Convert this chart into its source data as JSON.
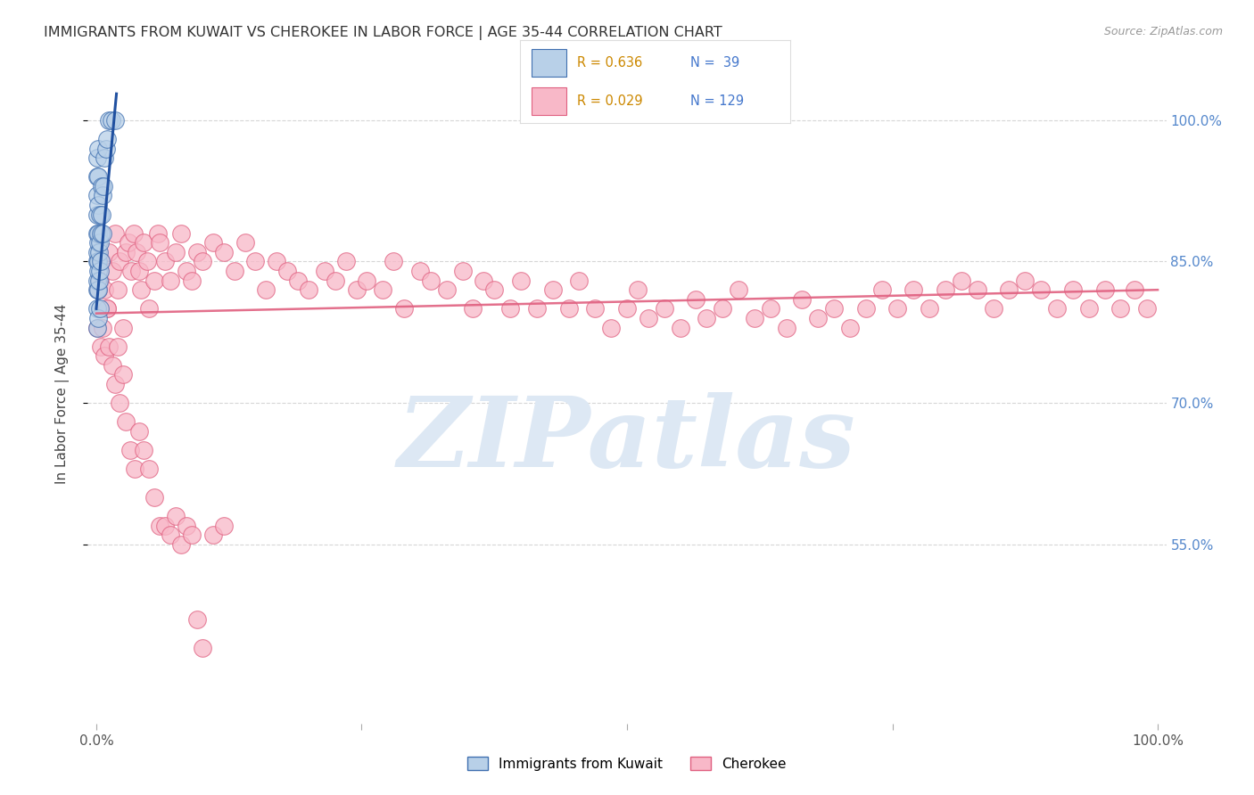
{
  "title": "IMMIGRANTS FROM KUWAIT VS CHEROKEE IN LABOR FORCE | AGE 35-44 CORRELATION CHART",
  "source": "Source: ZipAtlas.com",
  "ylabel": "In Labor Force | Age 35-44",
  "y_min": 0.36,
  "y_max": 1.06,
  "x_min": -0.008,
  "x_max": 1.008,
  "kuwait_R": 0.636,
  "kuwait_N": 39,
  "cherokee_R": 0.029,
  "cherokee_N": 129,
  "legend_label_kuwait": "Immigrants from Kuwait",
  "legend_label_cherokee": "Cherokee",
  "kuwait_fill_color": "#b8d0e8",
  "kuwait_edge_color": "#4070b0",
  "kuwait_line_color": "#2050a0",
  "cherokee_fill_color": "#f8b8c8",
  "cherokee_edge_color": "#e06080",
  "cherokee_line_color": "#e06080",
  "background_color": "#ffffff",
  "grid_color": "#cccccc",
  "title_color": "#333333",
  "source_color": "#999999",
  "watermark_color": "#dde8f4",
  "right_axis_color": "#5588cc",
  "kuwait_x": [
    0.0005,
    0.0008,
    0.001,
    0.001,
    0.001,
    0.001,
    0.001,
    0.001,
    0.001,
    0.001,
    0.001,
    0.0015,
    0.0015,
    0.002,
    0.002,
    0.002,
    0.002,
    0.002,
    0.002,
    0.002,
    0.0025,
    0.0025,
    0.003,
    0.003,
    0.003,
    0.003,
    0.004,
    0.004,
    0.005,
    0.005,
    0.006,
    0.006,
    0.007,
    0.008,
    0.009,
    0.01,
    0.012,
    0.014,
    0.018
  ],
  "kuwait_y": [
    0.82,
    0.85,
    0.78,
    0.8,
    0.83,
    0.86,
    0.88,
    0.9,
    0.92,
    0.94,
    0.96,
    0.84,
    0.87,
    0.79,
    0.82,
    0.85,
    0.88,
    0.91,
    0.94,
    0.97,
    0.83,
    0.86,
    0.8,
    0.84,
    0.87,
    0.9,
    0.85,
    0.88,
    0.9,
    0.93,
    0.88,
    0.92,
    0.93,
    0.96,
    0.97,
    0.98,
    1.0,
    1.0,
    1.0
  ],
  "cherokee_x": [
    0.003,
    0.005,
    0.008,
    0.01,
    0.012,
    0.015,
    0.018,
    0.02,
    0.022,
    0.025,
    0.028,
    0.03,
    0.033,
    0.035,
    0.038,
    0.04,
    0.042,
    0.045,
    0.048,
    0.05,
    0.055,
    0.058,
    0.06,
    0.065,
    0.07,
    0.075,
    0.08,
    0.085,
    0.09,
    0.095,
    0.1,
    0.11,
    0.12,
    0.13,
    0.14,
    0.15,
    0.16,
    0.17,
    0.18,
    0.19,
    0.2,
    0.215,
    0.225,
    0.235,
    0.245,
    0.255,
    0.27,
    0.28,
    0.29,
    0.305,
    0.315,
    0.33,
    0.345,
    0.355,
    0.365,
    0.375,
    0.39,
    0.4,
    0.415,
    0.43,
    0.445,
    0.455,
    0.47,
    0.485,
    0.5,
    0.51,
    0.52,
    0.535,
    0.55,
    0.565,
    0.575,
    0.59,
    0.605,
    0.62,
    0.635,
    0.65,
    0.665,
    0.68,
    0.695,
    0.71,
    0.725,
    0.74,
    0.755,
    0.77,
    0.785,
    0.8,
    0.815,
    0.83,
    0.845,
    0.86,
    0.875,
    0.89,
    0.905,
    0.92,
    0.935,
    0.95,
    0.965,
    0.978,
    0.99,
    0.001,
    0.002,
    0.004,
    0.006,
    0.008,
    0.01,
    0.012,
    0.015,
    0.018,
    0.02,
    0.022,
    0.025,
    0.028,
    0.032,
    0.036,
    0.04,
    0.045,
    0.05,
    0.055,
    0.06,
    0.065,
    0.07,
    0.075,
    0.08,
    0.085,
    0.09,
    0.095,
    0.1,
    0.11,
    0.12
  ],
  "cherokee_y": [
    0.83,
    0.85,
    0.82,
    0.8,
    0.86,
    0.84,
    0.88,
    0.82,
    0.85,
    0.78,
    0.86,
    0.87,
    0.84,
    0.88,
    0.86,
    0.84,
    0.82,
    0.87,
    0.85,
    0.8,
    0.83,
    0.88,
    0.87,
    0.85,
    0.83,
    0.86,
    0.88,
    0.84,
    0.83,
    0.86,
    0.85,
    0.87,
    0.86,
    0.84,
    0.87,
    0.85,
    0.82,
    0.85,
    0.84,
    0.83,
    0.82,
    0.84,
    0.83,
    0.85,
    0.82,
    0.83,
    0.82,
    0.85,
    0.8,
    0.84,
    0.83,
    0.82,
    0.84,
    0.8,
    0.83,
    0.82,
    0.8,
    0.83,
    0.8,
    0.82,
    0.8,
    0.83,
    0.8,
    0.78,
    0.8,
    0.82,
    0.79,
    0.8,
    0.78,
    0.81,
    0.79,
    0.8,
    0.82,
    0.79,
    0.8,
    0.78,
    0.81,
    0.79,
    0.8,
    0.78,
    0.8,
    0.82,
    0.8,
    0.82,
    0.8,
    0.82,
    0.83,
    0.82,
    0.8,
    0.82,
    0.83,
    0.82,
    0.8,
    0.82,
    0.8,
    0.82,
    0.8,
    0.82,
    0.8,
    0.78,
    0.82,
    0.76,
    0.78,
    0.75,
    0.8,
    0.76,
    0.74,
    0.72,
    0.76,
    0.7,
    0.73,
    0.68,
    0.65,
    0.63,
    0.67,
    0.65,
    0.63,
    0.6,
    0.57,
    0.57,
    0.56,
    0.58,
    0.55,
    0.57,
    0.56,
    0.47,
    0.44,
    0.56,
    0.57
  ]
}
